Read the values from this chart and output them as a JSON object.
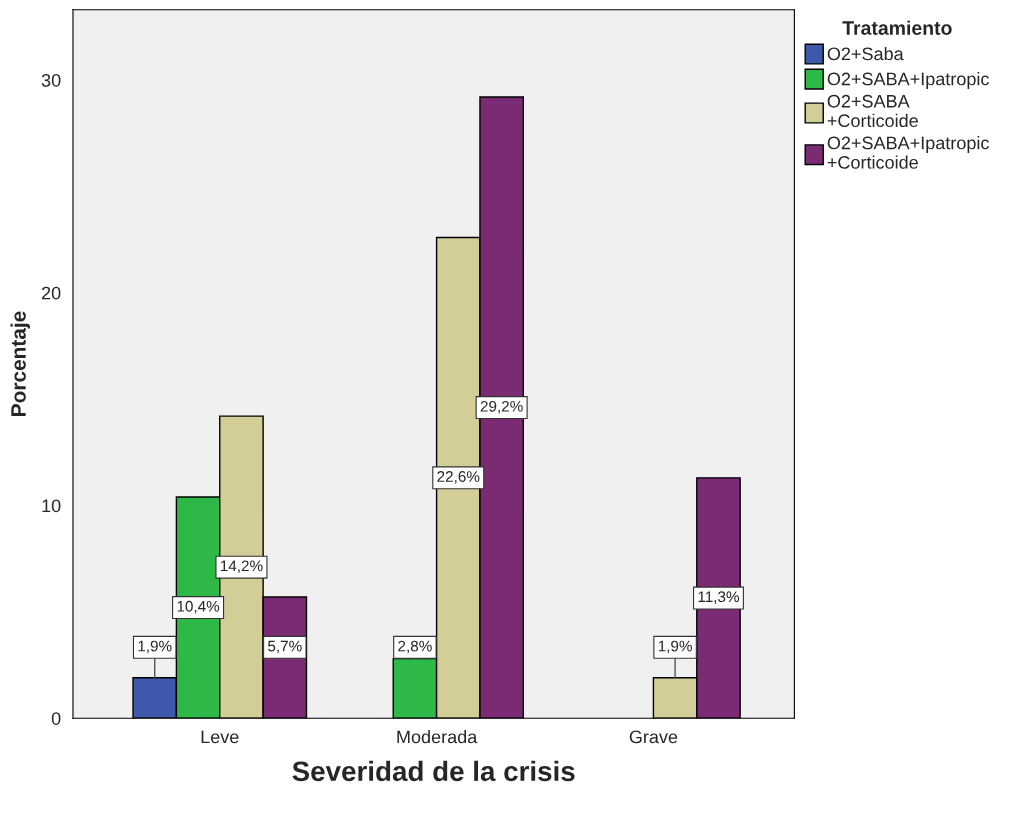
{
  "chart_data": {
    "type": "bar",
    "xlabel": "Severidad de la crisis",
    "ylabel": "Porcentaje",
    "legend_title": "Tratamiento",
    "categories": [
      "Leve",
      "Moderada",
      "Grave"
    ],
    "series": [
      {
        "name": "O2+Saba",
        "color": "#3e58ac",
        "values": [
          1.9,
          null,
          null
        ],
        "value_labels": [
          "1,9%",
          null,
          null
        ]
      },
      {
        "name": "O2+SABA+Ipatropic",
        "color": "#2eb848",
        "values": [
          10.4,
          2.8,
          null
        ],
        "value_labels": [
          "10,4%",
          "2,8%",
          null
        ]
      },
      {
        "name": "O2+SABA\n+Corticoide",
        "color": "#d3ce97",
        "values": [
          14.2,
          22.6,
          1.9
        ],
        "value_labels": [
          "14,2%",
          "22,6%",
          "1,9%"
        ]
      },
      {
        "name": "O2+SABA+Ipatropic\n+Corticoide",
        "color": "#7b2a74",
        "values": [
          5.7,
          29.2,
          11.3
        ],
        "value_labels": [
          "5,7%",
          "29,2%",
          "11,3%"
        ]
      }
    ],
    "ylim": [
      0,
      33.3
    ],
    "yticks": [
      0,
      10,
      20,
      30
    ],
    "grid": false,
    "legend": "top right"
  }
}
